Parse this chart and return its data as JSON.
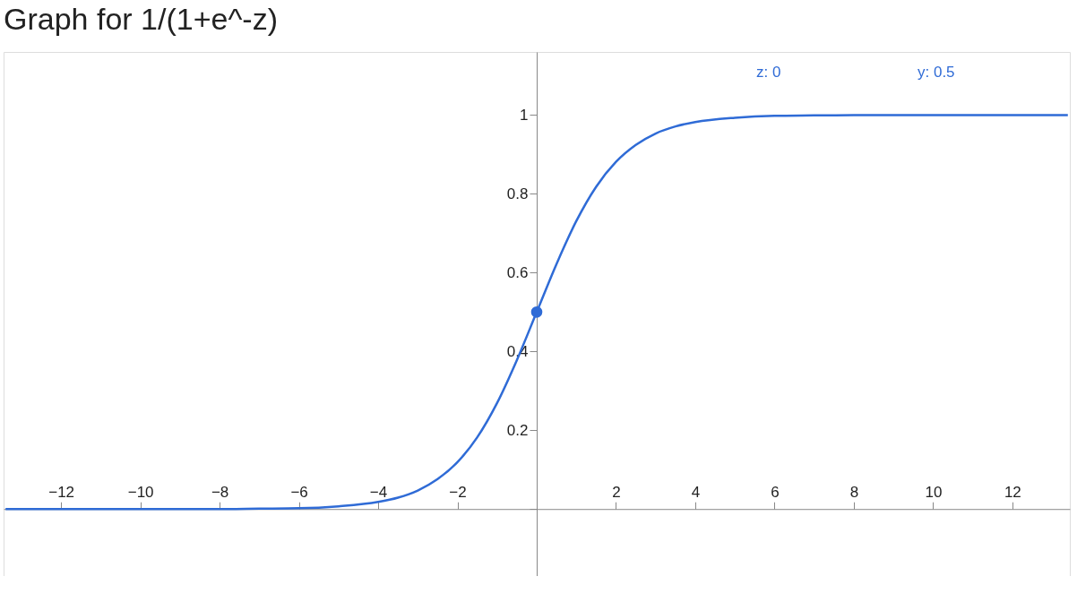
{
  "chart_data": {
    "type": "line",
    "title": "Graph for 1/(1+e^-z)",
    "x": [
      -13.4,
      -12,
      -10,
      -8,
      -7,
      -6,
      -5,
      -4,
      -3.5,
      -3,
      -2.5,
      -2,
      -1.5,
      -1,
      -0.5,
      0,
      0.5,
      1,
      1.5,
      2,
      2.5,
      3,
      3.5,
      4,
      5,
      6,
      7,
      8,
      10,
      12,
      13.4
    ],
    "series": [
      {
        "color": "#2f6bd6",
        "values": [
          0,
          0,
          0,
          0,
          0.001,
          0.002,
          0.007,
          0.018,
          0.029,
          0.047,
          0.076,
          0.119,
          0.182,
          0.269,
          0.378,
          0.5,
          0.622,
          0.731,
          0.818,
          0.881,
          0.924,
          0.953,
          0.971,
          0.982,
          0.993,
          0.998,
          0.999,
          1,
          1,
          1,
          1
        ]
      },
      {
        "type": "scatter",
        "color": "#2f6bd6",
        "x": [
          0
        ],
        "values": [
          0.5
        ],
        "marker": "circle"
      }
    ],
    "xlim": [
      -13.45,
      13.45
    ],
    "ylim": [
      -0.17,
      1.16
    ],
    "xticks": [
      -12,
      -10,
      -8,
      -6,
      -4,
      -2,
      {
        "value": 0,
        "label": null
      },
      2,
      4,
      6,
      8,
      10,
      12
    ],
    "yticks": [
      {
        "value": 0,
        "label": null
      },
      0.2,
      0.4,
      0.6,
      0.8,
      1
    ],
    "annotations": [
      "z: 0",
      "y: 0.5"
    ],
    "grid": false
  }
}
